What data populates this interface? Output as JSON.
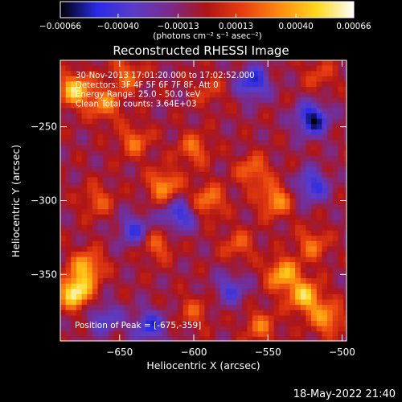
{
  "chart_data": {
    "type": "heatmap",
    "title": "Reconstructed RHESSI Image",
    "xlabel": "Heliocentric X (arcsec)",
    "ylabel": "Heliocentric Y (arcsec)",
    "xlim": [
      -690,
      -497
    ],
    "ylim": [
      -395,
      -205
    ],
    "x_ticks": [
      -650,
      -600,
      -550,
      -500
    ],
    "x_tick_labels": [
      "−650",
      "−600",
      "−550",
      "−500"
    ],
    "y_ticks": [
      -250,
      -300,
      -350
    ],
    "y_tick_labels": [
      "−250",
      "−300",
      "−350"
    ],
    "colorbar": {
      "min": -0.00066,
      "max": 0.00066,
      "ticks": [
        -0.00066,
        -0.0004,
        -0.00013,
        0.00013,
        0.0004,
        0.00066
      ],
      "tick_labels": [
        "−0.00066",
        "−0.00040",
        "−0.00013",
        "0.00013",
        "0.00040",
        "0.00066"
      ],
      "unit_label": "(photons cm⁻² s⁻¹ asec⁻²)",
      "colormap": [
        "#000000",
        "#2a2ae6",
        "#5a3cc8",
        "#7a2a8a",
        "#b01414",
        "#e84010",
        "#ff8c10",
        "#ffd81c",
        "#ffffff"
      ]
    },
    "annotations": [
      "30-Nov-2013 17:01:20.000 to 17:02:52.000",
      "Detectors: 3F 4F 5F 6F 7F 8F, Att 0",
      "Energy Range: 25.0 - 50.0 keV",
      "Clean     Total counts: 3.64E+03"
    ],
    "peak_label": "Position of Peak = [-675,-359]",
    "peak": {
      "x": -675,
      "y": -359
    },
    "hotspots": [
      {
        "x": -680,
        "y": -362,
        "v": 0.00066
      },
      {
        "x": -672,
        "y": -345,
        "v": 0.00045
      },
      {
        "x": -680,
        "y": -225,
        "v": 0.00055
      },
      {
        "x": -660,
        "y": -235,
        "v": 0.00035
      },
      {
        "x": -640,
        "y": -260,
        "v": 0.0003
      },
      {
        "x": -620,
        "y": -290,
        "v": 0.0004
      },
      {
        "x": -625,
        "y": -330,
        "v": 0.00028
      },
      {
        "x": -600,
        "y": -265,
        "v": 0.0003
      },
      {
        "x": -590,
        "y": -300,
        "v": 0.00035
      },
      {
        "x": -570,
        "y": -330,
        "v": 0.00025
      },
      {
        "x": -560,
        "y": -280,
        "v": 0.00032
      },
      {
        "x": -545,
        "y": -300,
        "v": 0.0004
      },
      {
        "x": -540,
        "y": -350,
        "v": 0.00048
      },
      {
        "x": -525,
        "y": -365,
        "v": 0.00052
      },
      {
        "x": -510,
        "y": -380,
        "v": 0.0004
      },
      {
        "x": -555,
        "y": -385,
        "v": 0.0003
      },
      {
        "x": -600,
        "y": -375,
        "v": 0.00022
      },
      {
        "x": -665,
        "y": -300,
        "v": 0.00025
      },
      {
        "x": -645,
        "y": -215,
        "v": 0.0003
      },
      {
        "x": -515,
        "y": -215,
        "v": 0.0002
      },
      {
        "x": -520,
        "y": -330,
        "v": 0.0003
      },
      {
        "x": -590,
        "y": -225,
        "v": 0.00018
      }
    ],
    "coldspots": [
      {
        "x": -560,
        "y": -220,
        "v": -0.00045
      },
      {
        "x": -520,
        "y": -245,
        "v": -0.00055
      },
      {
        "x": -610,
        "y": -310,
        "v": -0.0004
      },
      {
        "x": -640,
        "y": -320,
        "v": -0.00035
      },
      {
        "x": -575,
        "y": -360,
        "v": -0.0003
      },
      {
        "x": -520,
        "y": -290,
        "v": -0.0004
      },
      {
        "x": -660,
        "y": -380,
        "v": -0.0003
      },
      {
        "x": -630,
        "y": -385,
        "v": -0.0004
      }
    ]
  },
  "footer": {
    "timestamp": "18-May-2022 21:40"
  }
}
